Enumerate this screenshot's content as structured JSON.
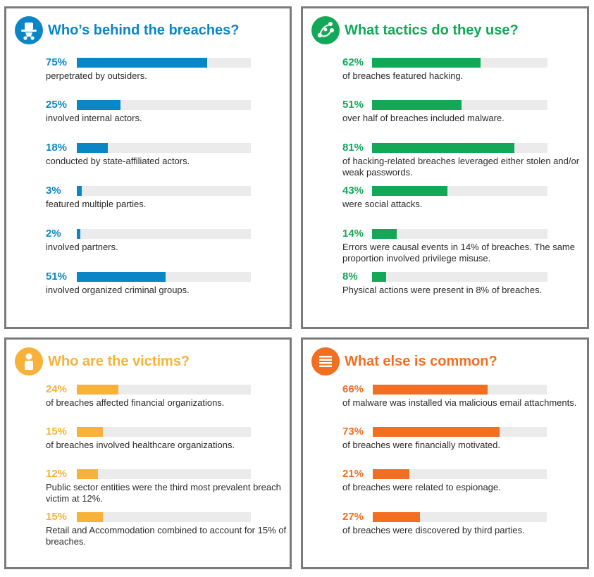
{
  "colors": {
    "blue": "#0a86c7",
    "green": "#12a858",
    "yellow": "#f8b23a",
    "orange": "#f26f21",
    "track": "#ebebeb"
  },
  "panels": {
    "actors": {
      "title": "Who’s behind the breaches?",
      "icon": "spy-icon",
      "stats": [
        {
          "pct": "75%",
          "desc": "perpetrated by outsiders."
        },
        {
          "pct": "25%",
          "desc": "involved internal actors."
        },
        {
          "pct": "18%",
          "desc": "conducted by state-affiliated actors."
        },
        {
          "pct": "3%",
          "desc": "featured multiple parties."
        },
        {
          "pct": "2%",
          "desc": "involved partners."
        },
        {
          "pct": "51%",
          "desc": "involved organized criminal groups."
        }
      ]
    },
    "tactics": {
      "title": "What tactics do they use?",
      "icon": "network-nodes-icon",
      "stats": [
        {
          "pct": "62%",
          "desc": "of breaches featured hacking."
        },
        {
          "pct": "51%",
          "desc": "over half of breaches included malware."
        },
        {
          "pct": "81%",
          "desc": "of hacking-related breaches leveraged either stolen and/or weak passwords."
        },
        {
          "pct": "43%",
          "desc": "were social attacks."
        },
        {
          "pct": "14%",
          "desc": "Errors were causal events in 14% of breaches. The same proportion involved privilege misuse."
        },
        {
          "pct": "8%",
          "desc": "Physical actions were present in 8% of breaches."
        }
      ]
    },
    "victims": {
      "title": "Who are the victims?",
      "icon": "person-icon",
      "stats": [
        {
          "pct": "24%",
          "desc": "of breaches affected financial organizations."
        },
        {
          "pct": "15%",
          "desc": "of breaches involved healthcare organizations."
        },
        {
          "pct": "12%",
          "desc": "Public sector entities were the third most prevalent breach victim at 12%."
        },
        {
          "pct": "15%",
          "desc": "Retail and Accommodation combined to account for 15% of breaches."
        }
      ]
    },
    "common": {
      "title": "What else is common?",
      "icon": "list-icon",
      "stats": [
        {
          "pct": "66%",
          "desc": "of malware was installed via malicious email attachments."
        },
        {
          "pct": "73%",
          "desc": "of breaches were financially motivated."
        },
        {
          "pct": "21%",
          "desc": "of breaches were related to espionage."
        },
        {
          "pct": "27%",
          "desc": "of breaches were discovered by third parties."
        }
      ]
    }
  },
  "chart_data": [
    {
      "type": "bar",
      "title": "Who’s behind the breaches?",
      "categories": [
        "perpetrated by outsiders.",
        "involved internal actors.",
        "conducted by state-affiliated actors.",
        "featured multiple parties.",
        "involved partners.",
        "involved organized criminal groups."
      ],
      "values": [
        75,
        25,
        18,
        3,
        2,
        51
      ],
      "ylim": [
        0,
        100
      ]
    },
    {
      "type": "bar",
      "title": "What tactics do they use?",
      "categories": [
        "of breaches featured hacking.",
        "over half of breaches included malware.",
        "of hacking-related breaches leveraged either stolen and/or weak passwords.",
        "were social attacks.",
        "Errors were causal events in 14% of breaches. The same proportion involved privilege misuse.",
        "Physical actions were present in 8% of breaches."
      ],
      "values": [
        62,
        51,
        81,
        43,
        14,
        8
      ],
      "ylim": [
        0,
        100
      ]
    },
    {
      "type": "bar",
      "title": "Who are the victims?",
      "categories": [
        "of breaches affected financial organizations.",
        "of breaches involved healthcare organizations.",
        "Public sector entities were the third most prevalent breach victim at 12%.",
        "Retail and Accommodation combined to account for 15% of breaches."
      ],
      "values": [
        24,
        15,
        12,
        15
      ],
      "ylim": [
        0,
        100
      ]
    },
    {
      "type": "bar",
      "title": "What else is common?",
      "categories": [
        "of malware was installed via malicious email attachments.",
        "of breaches were financially motivated.",
        "of breaches were related to espionage.",
        "of breaches were discovered by third parties."
      ],
      "values": [
        66,
        73,
        21,
        27
      ],
      "ylim": [
        0,
        100
      ]
    }
  ]
}
